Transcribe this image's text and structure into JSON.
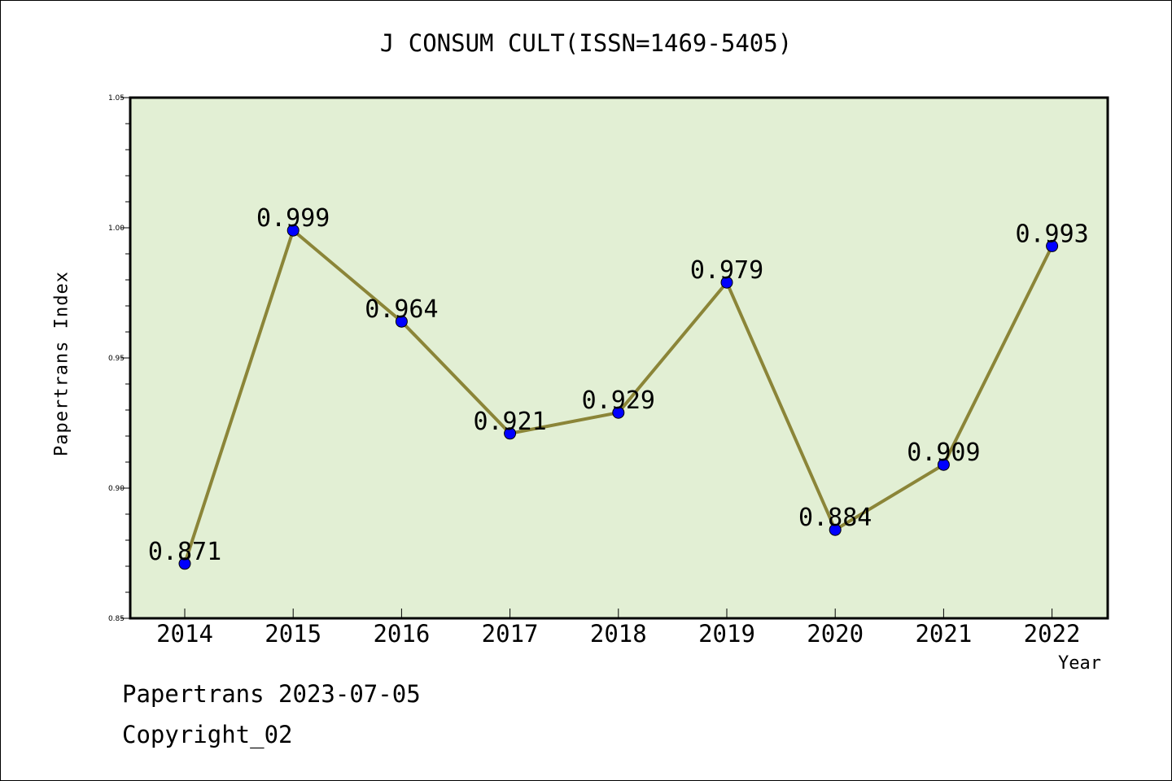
{
  "chart_data": {
    "type": "line",
    "title": "J CONSUM CULT(ISSN=1469-5405)",
    "xlabel": "Year",
    "ylabel": "Papertrans Index",
    "categories": [
      "2014",
      "2015",
      "2016",
      "2017",
      "2018",
      "2019",
      "2020",
      "2021",
      "2022"
    ],
    "series": [
      {
        "values": [
          0.871,
          0.999,
          0.964,
          0.921,
          0.929,
          0.979,
          0.884,
          0.909,
          0.993
        ]
      }
    ],
    "data_labels": [
      "0.871",
      "0.999",
      "0.964",
      "0.921",
      "0.929",
      "0.979",
      "0.884",
      "0.909",
      "0.993"
    ],
    "ylim": [
      0.85,
      1.05
    ],
    "yticks": [
      "0.85",
      "0.90",
      "0.95",
      "1.00",
      "1.05"
    ],
    "grid": false,
    "colors": {
      "plot_background": "#e2efd4",
      "line": "#8b8538",
      "marker": "#0000ff"
    }
  },
  "footer": {
    "line1": "Papertrans 2023-07-05",
    "line2": "Copyright_02"
  }
}
